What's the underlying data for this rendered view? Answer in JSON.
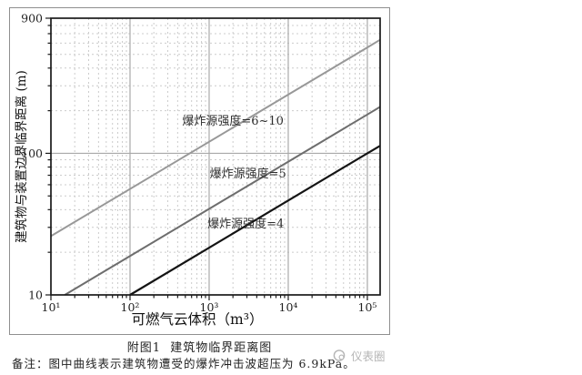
{
  "figure": {
    "caption": "附图1  建筑物临界距离图",
    "note": "备注：图中曲线表示建筑物遭受的爆炸冲击波超压为 6.9kPa。",
    "watermark_text": "仪表圈",
    "watermark_color": "#b5b5b5"
  },
  "chart_data": {
    "type": "line",
    "title": "",
    "xlabel": "可燃气云体积（m³）",
    "ylabel": "建筑物与装置边界临界距离 (m)",
    "x_scale": "log",
    "y_scale": "log",
    "xlim": [
      10,
      145000
    ],
    "ylim": [
      10,
      900
    ],
    "grid": "on",
    "legend_position": "none",
    "xticks": [
      {
        "value": 10,
        "label": "10¹"
      },
      {
        "value": 100,
        "label": "10²"
      },
      {
        "value": 1000,
        "label": "10³"
      },
      {
        "value": 10000,
        "label": "10⁴"
      },
      {
        "value": 100000,
        "label": "10⁵"
      }
    ],
    "yticks": [
      {
        "value": 10,
        "label": "10"
      },
      {
        "value": 100,
        "label": "100"
      },
      {
        "value": 900,
        "label": "900"
      }
    ],
    "series": [
      {
        "name": "爆炸源强度=6~10",
        "color": "#989898",
        "width": 2,
        "points": [
          [
            10,
            26
          ],
          [
            100000,
            560
          ],
          [
            145000,
            634
          ]
        ]
      },
      {
        "name": "爆炸源强度=5",
        "color": "#6e6e6e",
        "width": 2,
        "points": [
          [
            15,
            10
          ],
          [
            100000,
            188
          ],
          [
            145000,
            213
          ]
        ]
      },
      {
        "name": "爆炸源强度=4",
        "color": "#141414",
        "width": 2.2,
        "points": [
          [
            100,
            10
          ],
          [
            100000,
            100
          ],
          [
            145000,
            113
          ]
        ]
      }
    ],
    "annotations": [
      {
        "text": "爆炸源强度=6~10",
        "x": 2000,
        "y": 170
      },
      {
        "text": "爆炸源强度=5",
        "x": 3100,
        "y": 72
      },
      {
        "text": "爆炸源强度=4",
        "x": 2900,
        "y": 32
      }
    ],
    "style": {
      "minor_grid_color": "#cccccc",
      "major_grid_color": "#a9a9a9",
      "frame_color": "#1a1a1a",
      "text_color": "#1f1f1f"
    }
  }
}
